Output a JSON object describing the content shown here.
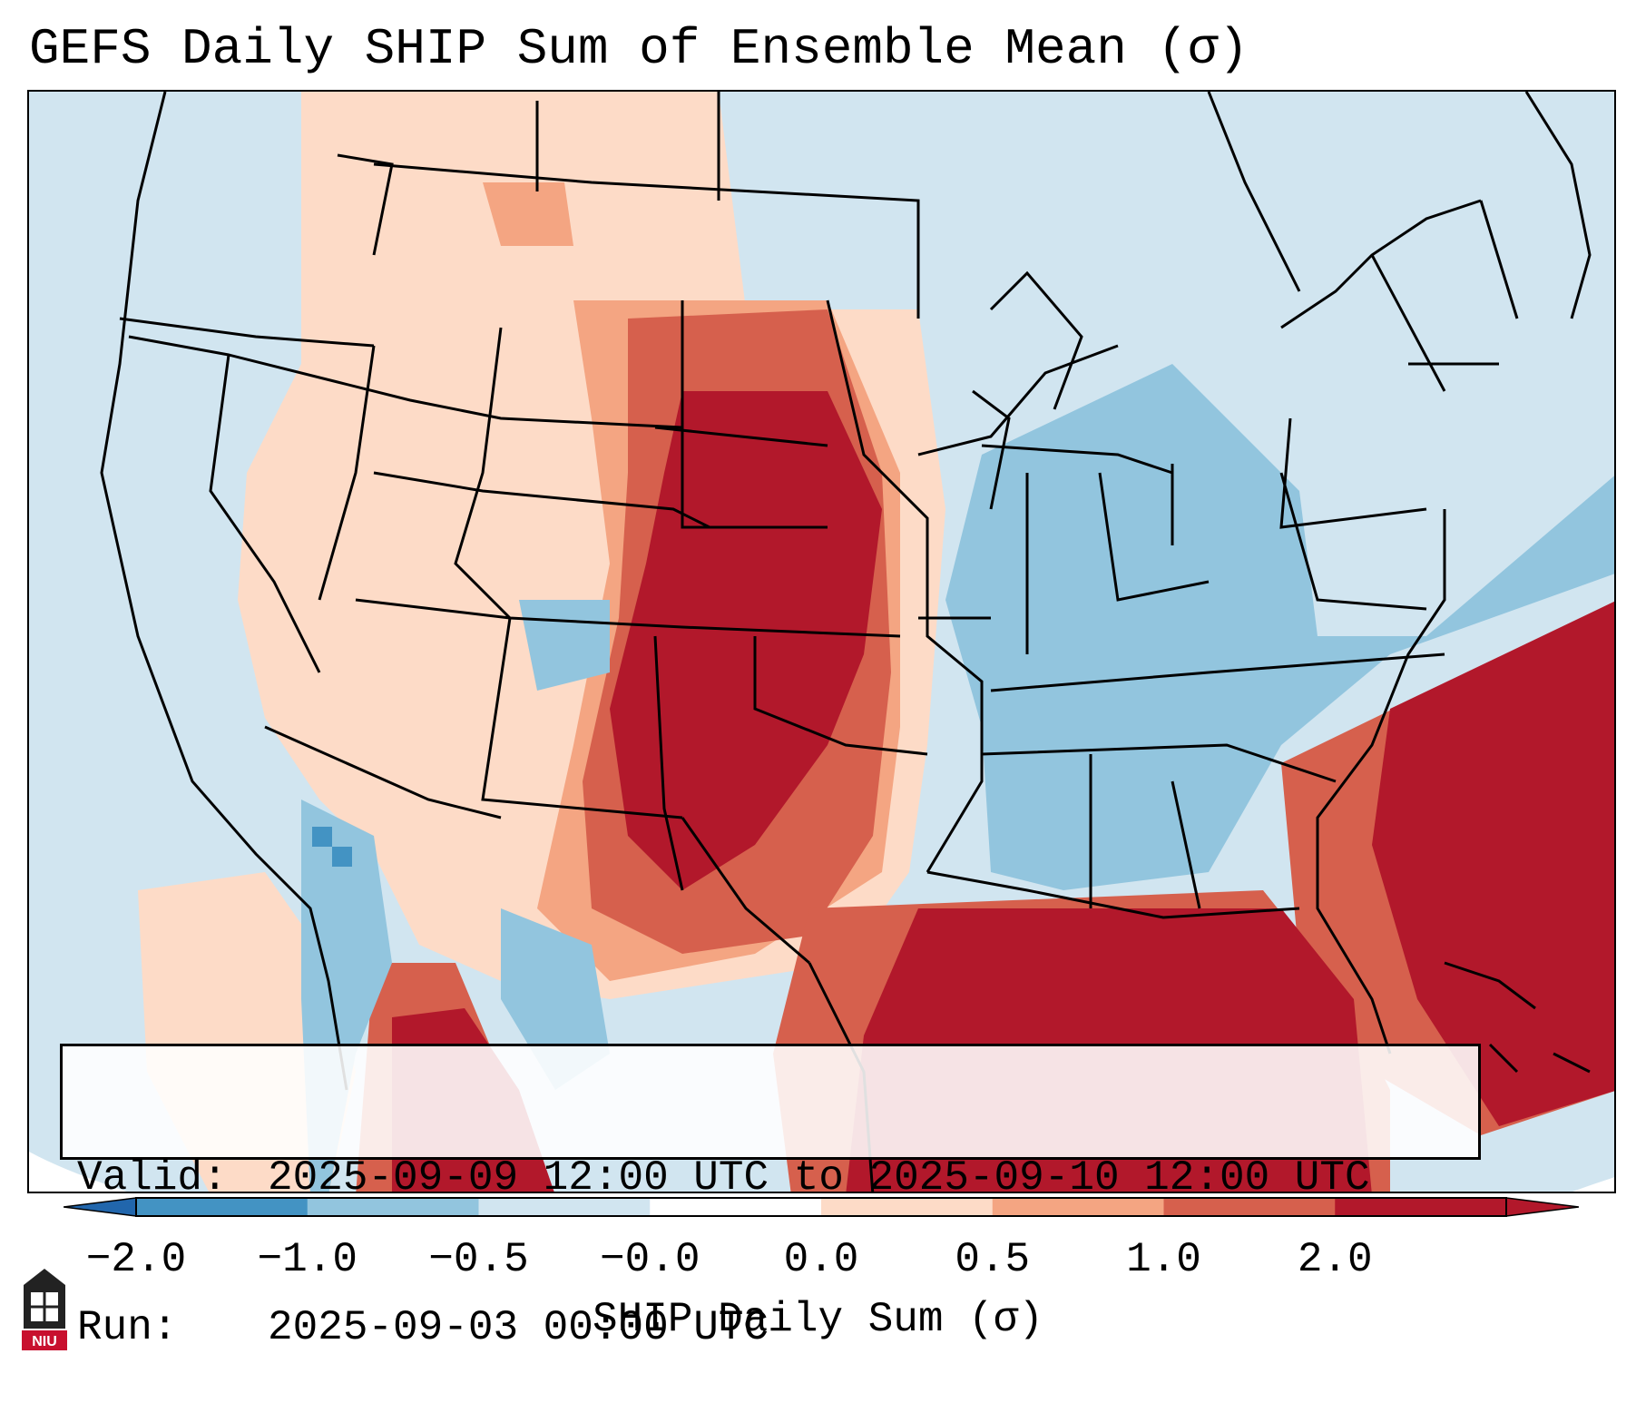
{
  "title": "GEFS Daily SHIP Sum of Ensemble Mean (σ)",
  "info": {
    "valid_label": "Valid:",
    "valid_value": "2025-09-09 12:00 UTC to 2025-09-10 12:00 UTC",
    "run_label": "Run:",
    "run_value": "2025-09-03 00:00 UTC"
  },
  "colorbar": {
    "label": "SHIP Daily Sum (σ)",
    "ticks": [
      "−2.0",
      "−1.0",
      "−0.5",
      "−0.0",
      "0.0",
      "0.5",
      "1.0",
      "2.0"
    ],
    "colors": [
      "#4393c3",
      "#92c5de",
      "#d1e5f0",
      "#ffffff",
      "#fddbc7",
      "#f4a582",
      "#d6604d",
      "#b2182b"
    ],
    "under_color": "#2166ac",
    "over_color": "#b2182b"
  },
  "map": {
    "background_color": "#d1e5f0",
    "outside_color": "#ffffff",
    "region": "Contiguous United States, Gulf of Mexico, western Atlantic"
  },
  "logo": {
    "text": "NIU"
  }
}
